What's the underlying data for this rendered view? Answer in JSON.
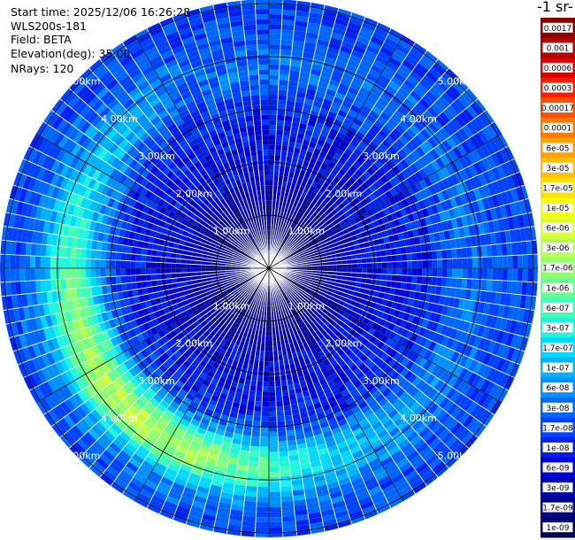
{
  "header": {
    "start_time": "Start time: 2025/12/06 16:26:28",
    "instrument": "WLS200s-181",
    "field": "Field: BETA",
    "elevation": "Elevation(deg): 35.00",
    "nrays": "NRays: 120"
  },
  "colorbar": {
    "unit_label": "-1 sr-",
    "ticks": [
      "0.0017",
      "0.001",
      "0.0006",
      "0.0003",
      "0.00017",
      "0.0001",
      "6e-05",
      "3e-05",
      "1.7e-05",
      "1e-05",
      "6e-06",
      "3e-06",
      "1.7e-06",
      "1e-06",
      "6e-07",
      "3e-07",
      "1.7e-07",
      "1e-07",
      "6e-08",
      "3e-08",
      "1.7e-08",
      "1e-08",
      "6e-09",
      "3e-09",
      "1.7e-09",
      "1e-09"
    ],
    "colors": [
      "#8b0000",
      "#b30000",
      "#d80000",
      "#ff1a00",
      "#ff4d00",
      "#ff7a00",
      "#ff9f00",
      "#ffc000",
      "#ffdf00",
      "#f5ff10",
      "#dcff30",
      "#b8ff50",
      "#90ff70",
      "#6aff90",
      "#40ffb8",
      "#20f5e0",
      "#00d8ff",
      "#00b4ff",
      "#0090ff",
      "#0066ff",
      "#0040ff",
      "#0020f0",
      "#0000d8",
      "#0000b0",
      "#000088",
      "#000060"
    ]
  },
  "chart_data": {
    "type": "heatmap",
    "projection": "polar PPI",
    "field": "BETA",
    "elevation_deg": 35.0,
    "n_rays": 120,
    "range_rings": [
      {
        "value": 1.0,
        "label": "1.00km"
      },
      {
        "value": 2.0,
        "label": "2.00km"
      },
      {
        "value": 3.0,
        "label": "3.00km"
      },
      {
        "value": 4.0,
        "label": "4.00km"
      },
      {
        "value": 5.0,
        "label": "5.00km"
      }
    ],
    "max_range_km": 5.0,
    "color_scale": "log"
  }
}
